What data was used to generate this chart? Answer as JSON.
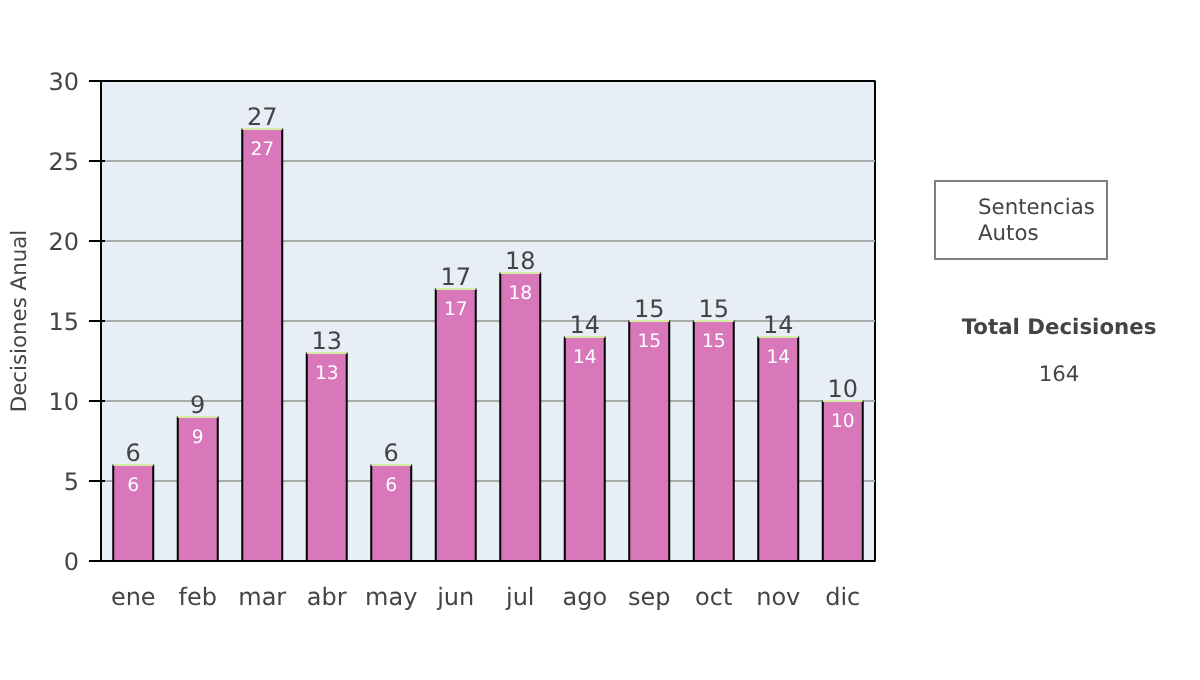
{
  "chart_data": {
    "type": "bar",
    "stacked": true,
    "ylabel": "Decisiones Anual",
    "categories": [
      "ene",
      "feb",
      "mar",
      "abr",
      "may",
      "jun",
      "jul",
      "ago",
      "sep",
      "oct",
      "nov",
      "dic"
    ],
    "series": [
      {
        "name": "Sentencias",
        "color": "#d877b9",
        "values": [
          6,
          9,
          27,
          13,
          6,
          17,
          18,
          14,
          15,
          15,
          14,
          10
        ],
        "value_labels": [
          "6",
          "9",
          "27",
          "13",
          "6",
          "17",
          "18",
          "14",
          "15",
          "15",
          "14",
          "10"
        ]
      },
      {
        "name": "Autos",
        "color": "#d6eba8",
        "values": [
          0,
          0,
          0,
          0,
          0,
          0,
          0,
          0,
          0,
          0,
          0,
          0
        ]
      }
    ],
    "totals": [
      "6",
      "9",
      "27",
      "13",
      "6",
      "17",
      "18",
      "14",
      "15",
      "15",
      "14",
      "10"
    ],
    "ylim": [
      0,
      30
    ],
    "yticks": [
      0,
      5,
      10,
      15,
      20,
      25,
      30
    ],
    "grid": "y",
    "legend": "right",
    "annotations": [
      "Total Decisiones",
      "164"
    ]
  }
}
